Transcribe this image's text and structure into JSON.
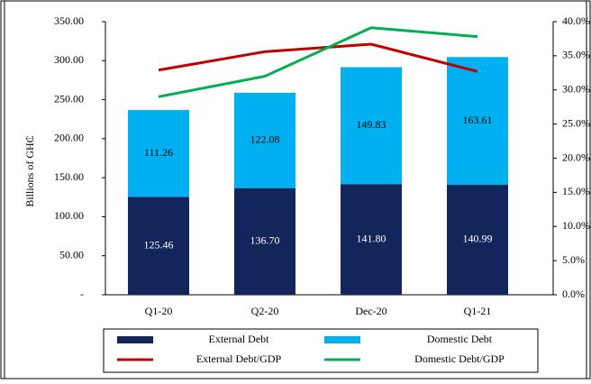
{
  "chart_data": {
    "type": "bar",
    "stacked": true,
    "y_label": "Billions of GH₵",
    "categories": [
      "Q1-20",
      "Q2-20",
      "Dec-20",
      "Q1-21"
    ],
    "series": [
      {
        "name": "External Debt",
        "type": "bar",
        "color": "#13265c",
        "values": [
          125.46,
          136.7,
          141.8,
          140.99
        ],
        "value_labels": [
          "125.46",
          "136.70",
          "141.80",
          "140.99"
        ]
      },
      {
        "name": "Domestic Debt",
        "type": "bar",
        "color": "#00b0f0",
        "values": [
          111.26,
          122.08,
          149.83,
          163.61
        ],
        "value_labels": [
          "111.26",
          "122.08",
          "149.83",
          "163.61"
        ]
      },
      {
        "name": "External Debt/GDP",
        "type": "line",
        "axis": "y2",
        "color": "#c00000",
        "values": [
          32.9,
          35.6,
          36.7,
          32.7
        ]
      },
      {
        "name": "Domestic Debt/GDP",
        "type": "line",
        "axis": "y2",
        "color": "#00b050",
        "values": [
          29.0,
          32.0,
          39.1,
          37.8
        ]
      }
    ],
    "ylim": [
      0,
      350
    ],
    "yticks": [
      {
        "value": 0,
        "label": "-"
      },
      {
        "value": 50,
        "label": "50.00"
      },
      {
        "value": 100,
        "label": "100.00"
      },
      {
        "value": 150,
        "label": "150.00"
      },
      {
        "value": 200,
        "label": "200.00"
      },
      {
        "value": 250,
        "label": "250.00"
      },
      {
        "value": 300,
        "label": "300.00"
      },
      {
        "value": 350,
        "label": "350.00"
      }
    ],
    "y2lim": [
      0,
      40
    ],
    "y2ticks": [
      {
        "value": 0,
        "label": "0.0%"
      },
      {
        "value": 5,
        "label": "5.0%"
      },
      {
        "value": 10,
        "label": "10.0%"
      },
      {
        "value": 15,
        "label": "15.0%"
      },
      {
        "value": 20,
        "label": "20.0%"
      },
      {
        "value": 25,
        "label": "25.0%"
      },
      {
        "value": 30,
        "label": "30.0%"
      },
      {
        "value": 35,
        "label": "35.0%"
      },
      {
        "value": 40,
        "label": "40.0%"
      }
    ],
    "legend": "bottom"
  }
}
